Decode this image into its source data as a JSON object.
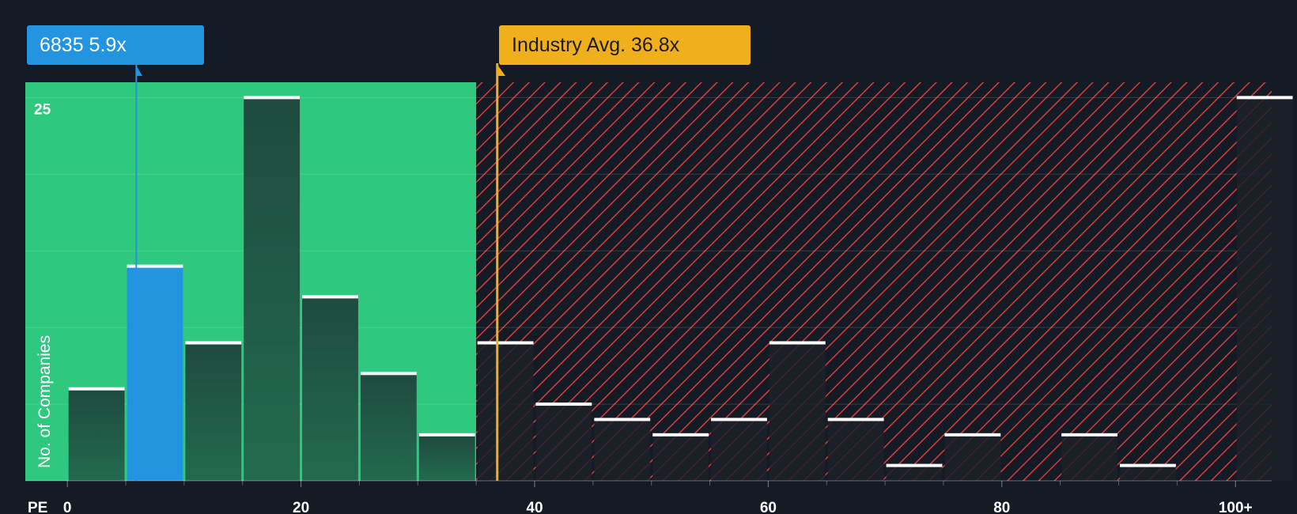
{
  "chart_data": {
    "type": "bar",
    "categories": [
      "0-5",
      "5-10",
      "10-15",
      "15-20",
      "20-25",
      "25-30",
      "30-35",
      "35-40",
      "40-45",
      "45-50",
      "50-55",
      "55-60",
      "60-65",
      "65-70",
      "70-75",
      "75-80",
      "80-85",
      "85-90",
      "90-95",
      "95-100",
      "100+"
    ],
    "values": [
      6,
      14,
      9,
      25,
      12,
      7,
      3,
      9,
      5,
      4,
      3,
      4,
      9,
      4,
      1,
      3,
      0,
      3,
      1,
      0,
      25
    ],
    "bin_edges": [
      0,
      5,
      10,
      15,
      20,
      25,
      30,
      35,
      40,
      45,
      50,
      55,
      60,
      65,
      70,
      75,
      80,
      85,
      90,
      95,
      100,
      105
    ],
    "highlight_index": 1,
    "xlabel": "PE",
    "ylabel": "No. of Companies",
    "x_ticks": [
      {
        "value": 0,
        "label": "0"
      },
      {
        "value": 20,
        "label": "20"
      },
      {
        "value": 40,
        "label": "40"
      },
      {
        "value": 60,
        "label": "60"
      },
      {
        "value": 80,
        "label": "80"
      },
      {
        "value": 100,
        "label": "100+"
      }
    ],
    "y_ticks": [
      {
        "value": 25,
        "label": "25"
      }
    ],
    "ylim": [
      0,
      26
    ],
    "xlim": [
      -3.6,
      103.1
    ],
    "grid": true,
    "undervalued_region": [
      -3.6,
      35
    ],
    "overvalued_region": [
      35,
      103.1
    ],
    "company": {
      "label": "6835 5.9x",
      "value": 5.9
    },
    "industry_avg": {
      "label": "Industry Avg. 36.8x",
      "value": 36.8
    }
  },
  "colors": {
    "background": "#151b24",
    "undervalued_fill": "#2ec87e",
    "overvalued_fill": "#151b24",
    "hatch": "#d63c3c",
    "bar": "#1f4a3f",
    "bar_over": "#1b2029",
    "highlight_bar": "#2394e0",
    "bar_cap": "#ffffff",
    "industry": "#f0b01c",
    "company": "#2394e0",
    "text": "#ffffff"
  }
}
